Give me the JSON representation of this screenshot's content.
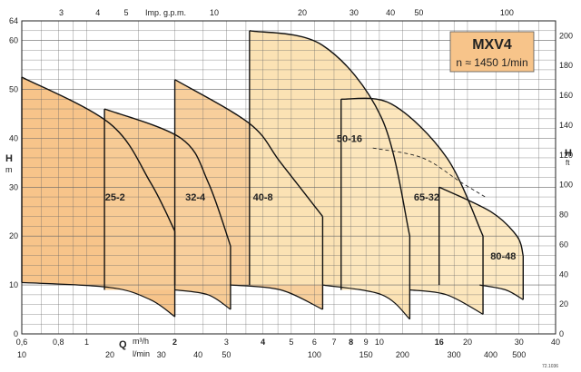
{
  "chart_data": {
    "type": "area",
    "title": "MXV4",
    "subtitle": "n ≈ 1450 1/min",
    "scale": "log-x",
    "x_unit_primary": "m³/h",
    "x_symbol": "Q",
    "xlim": [
      0.6,
      40
    ],
    "ylim_m": [
      0,
      64
    ],
    "ylim_ft": [
      0,
      210
    ],
    "axes": {
      "left_title": "H",
      "left_unit": "m",
      "right_title": "H",
      "right_unit": "ft",
      "top_label": "Imp. g.p.m.",
      "bottom_q_unit_m3h": "m³/h",
      "bottom_q_unit_lmin": "l/min",
      "left_ticks": [
        "0",
        "10",
        "20",
        "30",
        "40",
        "50",
        "60",
        "64"
      ],
      "right_ticks": [
        "0",
        "20",
        "40",
        "60",
        "80",
        "100",
        "120",
        "140",
        "160",
        "180",
        "200"
      ],
      "top_ticks": [
        "3",
        "4",
        "5",
        "10",
        "20",
        "30",
        "40",
        "50",
        "100"
      ],
      "bottom_m3h_ticks": [
        {
          "label": "0,6",
          "bold": false
        },
        {
          "label": "0,8",
          "bold": false
        },
        {
          "label": "1",
          "bold": false
        },
        {
          "label": "2",
          "bold": true
        },
        {
          "label": "3",
          "bold": false
        },
        {
          "label": "4",
          "bold": true
        },
        {
          "label": "5",
          "bold": false
        },
        {
          "label": "6",
          "bold": false
        },
        {
          "label": "7",
          "bold": false
        },
        {
          "label": "8",
          "bold": true
        },
        {
          "label": "9",
          "bold": false
        },
        {
          "label": "10",
          "bold": false
        },
        {
          "label": "16",
          "bold": true
        },
        {
          "label": "20",
          "bold": false
        },
        {
          "label": "30",
          "bold": false
        },
        {
          "label": "40",
          "bold": false
        }
      ],
      "bottom_lmin_ticks": [
        "10",
        "20",
        "30",
        "40",
        "50",
        "100",
        "150",
        "200",
        "300",
        "400",
        "500"
      ]
    },
    "series": [
      {
        "name": "25-2",
        "color": "#f7c48a",
        "upper": [
          [
            0.6,
            52.5
          ],
          [
            1.2,
            43
          ],
          [
            1.65,
            31
          ],
          [
            2.0,
            21
          ]
        ],
        "lower": [
          [
            0.6,
            10.5
          ],
          [
            1.2,
            9.5
          ],
          [
            1.65,
            7
          ],
          [
            2.0,
            3.5
          ]
        ]
      },
      {
        "name": "32-4",
        "color": "#f7cb95",
        "upper": [
          [
            1.15,
            46
          ],
          [
            2.1,
            40
          ],
          [
            2.6,
            31
          ],
          [
            3.1,
            18
          ]
        ],
        "lower": [
          [
            2.0,
            9
          ],
          [
            2.6,
            8
          ],
          [
            3.1,
            5
          ]
        ]
      },
      {
        "name": "40-8",
        "color": "#f8cf9c",
        "upper": [
          [
            2.0,
            52
          ],
          [
            3.6,
            43
          ],
          [
            4.6,
            35
          ],
          [
            6.4,
            24
          ]
        ],
        "lower": [
          [
            3.1,
            10
          ],
          [
            4.6,
            9
          ],
          [
            6.4,
            5
          ]
        ]
      },
      {
        "name": "50-16",
        "color": "#fbe2b4",
        "upper": [
          [
            3.6,
            62
          ],
          [
            6.4,
            59
          ],
          [
            10.2,
            44
          ],
          [
            12.7,
            20
          ]
        ],
        "lower": [
          [
            6.4,
            10
          ],
          [
            10.2,
            8
          ],
          [
            12.7,
            3
          ]
        ]
      },
      {
        "name": "65-32",
        "color": "#fce6bc",
        "upper": [
          [
            7.4,
            48
          ],
          [
            11,
            47
          ],
          [
            17,
            36
          ],
          [
            22.6,
            20
          ]
        ],
        "lower": [
          [
            12.7,
            9
          ],
          [
            17,
            8
          ],
          [
            22.6,
            4
          ]
        ]
      },
      {
        "name": "80-48",
        "color": "#fde9c2",
        "upper": [
          [
            16,
            30
          ],
          [
            24,
            25
          ],
          [
            29.5,
            20
          ],
          [
            31,
            16
          ]
        ],
        "lower": [
          [
            22,
            10
          ],
          [
            27,
            9
          ],
          [
            31,
            7
          ]
        ]
      }
    ],
    "dashed_line": [
      [
        9.5,
        38
      ],
      [
        14,
        36
      ],
      [
        19,
        31
      ],
      [
        23,
        28
      ]
    ],
    "footnote": "72.1036"
  }
}
